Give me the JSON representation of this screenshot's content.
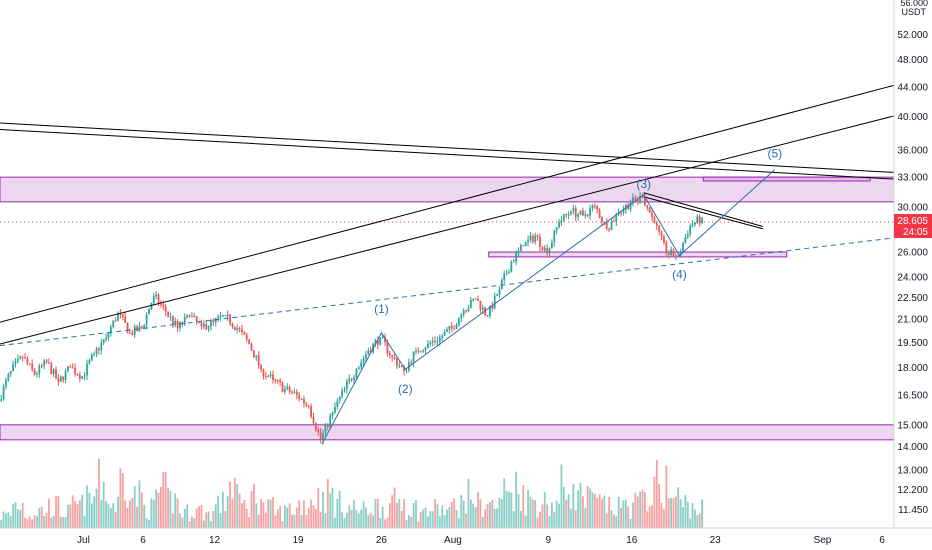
{
  "chart_data": {
    "type": "candlestick",
    "currency": "USDT",
    "currency_top": "56.000",
    "log_scale": true,
    "ylim": [
      10.8,
      58
    ],
    "y_ticks": [
      "52.000",
      "48.000",
      "44.000",
      "40.000",
      "36.000",
      "33.000",
      "30.000",
      "26.000",
      "24.000",
      "22.500",
      "21.000",
      "19.500",
      "18.000",
      "16.500",
      "15.000",
      "14.000",
      "13.000",
      "12.200",
      "11.450"
    ],
    "x_range": [
      "2021-06-24",
      "2021-09-07"
    ],
    "x_ticks": [
      {
        "date": "2021-07-01",
        "label": "Jul"
      },
      {
        "date": "2021-07-06",
        "label": "6"
      },
      {
        "date": "2021-07-12",
        "label": "12"
      },
      {
        "date": "2021-07-19",
        "label": "19"
      },
      {
        "date": "2021-07-26",
        "label": "26"
      },
      {
        "date": "2021-08-01",
        "label": "Aug"
      },
      {
        "date": "2021-08-09",
        "label": "9"
      },
      {
        "date": "2021-08-16",
        "label": "16"
      },
      {
        "date": "2021-08-23",
        "label": "23"
      },
      {
        "date": "2021-09-01",
        "label": "Sep"
      },
      {
        "date": "2021-09-06",
        "label": "6"
      }
    ],
    "last_price": {
      "value": "28.605",
      "countdown": "24:05"
    },
    "price_path": [
      [
        "2021-06-24",
        16.2
      ],
      [
        "2021-06-25",
        17.8
      ],
      [
        "2021-06-26",
        18.6
      ],
      [
        "2021-06-27",
        17.6
      ],
      [
        "2021-06-28",
        18.3
      ],
      [
        "2021-06-29",
        17.2
      ],
      [
        "2021-06-30",
        18.0
      ],
      [
        "2021-07-01",
        17.5
      ],
      [
        "2021-07-02",
        18.8
      ],
      [
        "2021-07-03",
        19.8
      ],
      [
        "2021-07-04",
        21.4
      ],
      [
        "2021-07-05",
        20.1
      ],
      [
        "2021-07-06",
        20.4
      ],
      [
        "2021-07-07",
        22.6
      ],
      [
        "2021-07-08",
        21.5
      ],
      [
        "2021-07-09",
        20.4
      ],
      [
        "2021-07-10",
        21.2
      ],
      [
        "2021-07-11",
        20.5
      ],
      [
        "2021-07-12",
        20.8
      ],
      [
        "2021-07-13",
        21.2
      ],
      [
        "2021-07-14",
        20.4
      ],
      [
        "2021-07-15",
        19.4
      ],
      [
        "2021-07-16",
        17.9
      ],
      [
        "2021-07-17",
        17.3
      ],
      [
        "2021-07-18",
        16.8
      ],
      [
        "2021-07-19",
        16.5
      ],
      [
        "2021-07-20",
        15.9
      ],
      [
        "2021-07-21",
        14.3
      ],
      [
        "2021-07-22",
        15.6
      ],
      [
        "2021-07-23",
        16.8
      ],
      [
        "2021-07-24",
        17.9
      ],
      [
        "2021-07-25",
        19.0
      ],
      [
        "2021-07-26",
        19.8
      ],
      [
        "2021-07-27",
        18.6
      ],
      [
        "2021-07-28",
        17.8
      ],
      [
        "2021-07-29",
        19.0
      ],
      [
        "2021-07-30",
        19.4
      ],
      [
        "2021-07-31",
        19.8
      ],
      [
        "2021-08-01",
        20.4
      ],
      [
        "2021-08-02",
        21.6
      ],
      [
        "2021-08-03",
        22.4
      ],
      [
        "2021-08-04",
        21.2
      ],
      [
        "2021-08-05",
        23.1
      ],
      [
        "2021-08-06",
        25.2
      ],
      [
        "2021-08-07",
        26.5
      ],
      [
        "2021-08-08",
        27.4
      ],
      [
        "2021-08-09",
        25.9
      ],
      [
        "2021-08-10",
        28.6
      ],
      [
        "2021-08-11",
        29.6
      ],
      [
        "2021-08-12",
        29.2
      ],
      [
        "2021-08-13",
        30.1
      ],
      [
        "2021-08-14",
        28.0
      ],
      [
        "2021-08-15",
        29.5
      ],
      [
        "2021-08-16",
        30.4
      ],
      [
        "2021-08-17",
        31.0
      ],
      [
        "2021-08-18",
        28.5
      ],
      [
        "2021-08-19",
        25.9
      ],
      [
        "2021-08-20",
        25.7
      ],
      [
        "2021-08-21",
        28.3
      ],
      [
        "2021-08-22",
        29.0
      ]
    ],
    "volume": [
      [
        "2021-06-24",
        0.16
      ],
      [
        "2021-06-25",
        0.3
      ],
      [
        "2021-06-26",
        0.18
      ],
      [
        "2021-06-27",
        0.22
      ],
      [
        "2021-06-28",
        0.27
      ],
      [
        "2021-06-29",
        0.2
      ],
      [
        "2021-06-30",
        0.28
      ],
      [
        "2021-07-01",
        0.35
      ],
      [
        "2021-07-02",
        0.55
      ],
      [
        "2021-07-03",
        0.3
      ],
      [
        "2021-07-04",
        0.62
      ],
      [
        "2021-07-05",
        0.4
      ],
      [
        "2021-07-06",
        0.25
      ],
      [
        "2021-07-07",
        0.45
      ],
      [
        "2021-07-08",
        0.35
      ],
      [
        "2021-07-09",
        0.2
      ],
      [
        "2021-07-10",
        0.22
      ],
      [
        "2021-07-11",
        0.18
      ],
      [
        "2021-07-12",
        0.3
      ],
      [
        "2021-07-13",
        0.55
      ],
      [
        "2021-07-14",
        0.28
      ],
      [
        "2021-07-15",
        0.4
      ],
      [
        "2021-07-16",
        0.25
      ],
      [
        "2021-07-17",
        0.2
      ],
      [
        "2021-07-18",
        0.24
      ],
      [
        "2021-07-19",
        0.3
      ],
      [
        "2021-07-20",
        0.38
      ],
      [
        "2021-07-21",
        0.42
      ],
      [
        "2021-07-22",
        0.3
      ],
      [
        "2021-07-23",
        0.25
      ],
      [
        "2021-07-24",
        0.22
      ],
      [
        "2021-07-25",
        0.28
      ],
      [
        "2021-07-26",
        0.26
      ],
      [
        "2021-07-27",
        0.35
      ],
      [
        "2021-07-28",
        0.25
      ],
      [
        "2021-07-29",
        0.2
      ],
      [
        "2021-07-30",
        0.24
      ],
      [
        "2021-07-31",
        0.22
      ],
      [
        "2021-08-01",
        0.3
      ],
      [
        "2021-08-02",
        0.4
      ],
      [
        "2021-08-03",
        0.3
      ],
      [
        "2021-08-04",
        0.28
      ],
      [
        "2021-08-05",
        0.45
      ],
      [
        "2021-08-06",
        0.5
      ],
      [
        "2021-08-07",
        0.35
      ],
      [
        "2021-08-08",
        0.32
      ],
      [
        "2021-08-09",
        0.3
      ],
      [
        "2021-08-10",
        0.52
      ],
      [
        "2021-08-11",
        0.4
      ],
      [
        "2021-08-12",
        0.35
      ],
      [
        "2021-08-13",
        0.3
      ],
      [
        "2021-08-14",
        0.25
      ],
      [
        "2021-08-15",
        0.28
      ],
      [
        "2021-08-16",
        0.32
      ],
      [
        "2021-08-17",
        0.44
      ],
      [
        "2021-08-18",
        0.55
      ],
      [
        "2021-08-19",
        0.38
      ],
      [
        "2021-08-20",
        0.3
      ],
      [
        "2021-08-21",
        0.25
      ],
      [
        "2021-08-22",
        0.22
      ]
    ],
    "zones": [
      {
        "x0": "2021-06-24",
        "x1": "2021-09-07",
        "y0": 30.5,
        "y1": 33.0
      },
      {
        "x0": "2021-06-24",
        "x1": "2021-09-07",
        "y0": 14.3,
        "y1": 15.0
      },
      {
        "x0": "2021-08-04",
        "x1": "2021-08-29",
        "y0": 25.6,
        "y1": 26.0
      },
      {
        "x0": "2021-08-22",
        "x1": "2021-09-05",
        "y0": 32.6,
        "y1": 33.0
      }
    ],
    "trendlines": [
      {
        "style": "solid",
        "color": "#000000",
        "points": [
          [
            "2021-06-24",
            39.2
          ],
          [
            "2021-09-07",
            33.5
          ]
        ]
      },
      {
        "style": "solid",
        "color": "#000000",
        "points": [
          [
            "2021-06-24",
            38.4
          ],
          [
            "2021-09-07",
            32.8
          ]
        ]
      },
      {
        "style": "solid",
        "color": "#000000",
        "points": [
          [
            "2021-06-24",
            20.8
          ],
          [
            "2021-09-07",
            44.2
          ]
        ]
      },
      {
        "style": "solid",
        "color": "#000000",
        "points": [
          [
            "2021-06-24",
            19.4
          ],
          [
            "2021-09-07",
            40.1
          ]
        ]
      },
      {
        "style": "dashed",
        "color": "#2c6fb0",
        "points": [
          [
            "2021-06-24",
            19.3
          ],
          [
            "2021-09-07",
            27.2
          ]
        ]
      },
      {
        "style": "solid",
        "color": "#000000",
        "points": [
          [
            "2021-08-17",
            31.4
          ],
          [
            "2021-08-27",
            28.2
          ]
        ]
      },
      {
        "style": "solid",
        "color": "#000000",
        "points": [
          [
            "2021-08-17",
            31.0
          ],
          [
            "2021-08-27",
            28.0
          ]
        ]
      }
    ],
    "wave_path": [
      [
        "2021-07-21",
        14.1
      ],
      [
        "2021-07-26",
        20.1
      ],
      [
        "2021-07-28",
        17.9
      ],
      [
        "2021-08-17",
        31.2
      ],
      [
        "2021-08-20",
        25.7
      ],
      [
        "2021-08-23",
        28.5
      ],
      [
        "2021-08-28",
        33.8
      ]
    ],
    "wave_labels": [
      {
        "label": "(1)",
        "date": "2021-07-26",
        "value": 21.7
      },
      {
        "label": "(2)",
        "date": "2021-07-28",
        "value": 16.8
      },
      {
        "label": "(3)",
        "date": "2021-08-17",
        "value": 32.3
      },
      {
        "label": "(4)",
        "date": "2021-08-20",
        "value": 24.2
      },
      {
        "label": "(5)",
        "date": "2021-08-28",
        "value": 35.6
      }
    ]
  }
}
